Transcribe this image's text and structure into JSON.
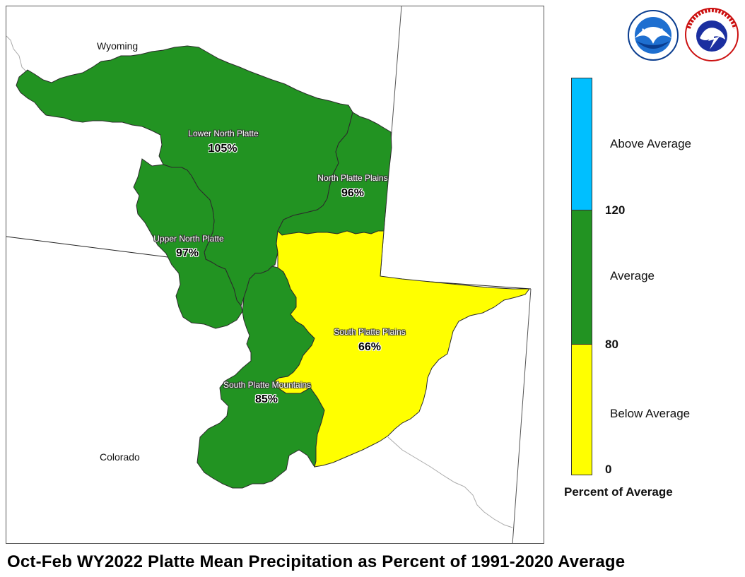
{
  "caption": "Oct-Feb WY2022 Platte Mean Precipitation as Percent of 1991-2020 Average",
  "states": {
    "wyoming": "Wyoming",
    "colorado": "Colorado"
  },
  "basins": [
    {
      "name": "Lower North Platte",
      "value": "105%",
      "percent_of_average": 105,
      "category": "Average"
    },
    {
      "name": "North Platte Plains",
      "value": "96%",
      "percent_of_average": 96,
      "category": "Average"
    },
    {
      "name": "Upper North Platte",
      "value": "97%",
      "percent_of_average": 97,
      "category": "Average"
    },
    {
      "name": "South Platte Plains",
      "value": "66%",
      "percent_of_average": 66,
      "category": "Below Average"
    },
    {
      "name": "South Platte Mountains",
      "value": "85%",
      "percent_of_average": 85,
      "category": "Average"
    }
  ],
  "legend": {
    "title": "Percent of Average",
    "categories": [
      {
        "label": "Above Average",
        "color": "#00bfff"
      },
      {
        "label": "Average",
        "color": "#229322"
      },
      {
        "label": "Below Average",
        "color": "#ffff00"
      }
    ],
    "ticks": [
      "120",
      "80",
      "0"
    ]
  },
  "logos": {
    "noaa": "NOAA",
    "nws": "NATIONAL WEATHER SERVICE"
  },
  "colors": {
    "average": "#229322",
    "below_average": "#ffff00",
    "above_average": "#00bfff",
    "state_line": "#333333",
    "basin_border": "#2b2b2b"
  }
}
